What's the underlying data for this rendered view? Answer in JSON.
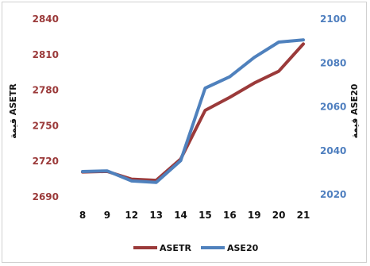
{
  "chart_data": {
    "type": "line",
    "categories": [
      "8",
      "9",
      "12",
      "13",
      "14",
      "15",
      "16",
      "19",
      "20",
      "21"
    ],
    "y_left": {
      "label": "قيمة ASETR",
      "ticks": [
        "2840",
        "2810",
        "2780",
        "2750",
        "2720",
        "2690"
      ],
      "ylim": [
        2690,
        2840
      ]
    },
    "y_right": {
      "label": "قيمة ASE20",
      "ticks": [
        "2100",
        "2080",
        "2060",
        "2040",
        "2020"
      ],
      "ylim": [
        2020,
        2100
      ]
    },
    "series": [
      {
        "name": "ASETR",
        "axis": "left",
        "color": "#9b3a3a",
        "values": [
          2711,
          2711.5,
          2705,
          2704,
          2722,
          2763,
          2774,
          2786,
          2796,
          2819
        ]
      },
      {
        "name": "ASE20",
        "axis": "right",
        "color": "#4f81bd",
        "values": [
          2030.5,
          2030.8,
          2026.2,
          2025.5,
          2035.5,
          2068.5,
          2073.7,
          2082.5,
          2089.5,
          2090.5
        ]
      }
    ],
    "legend": "bottom",
    "grid": false
  }
}
